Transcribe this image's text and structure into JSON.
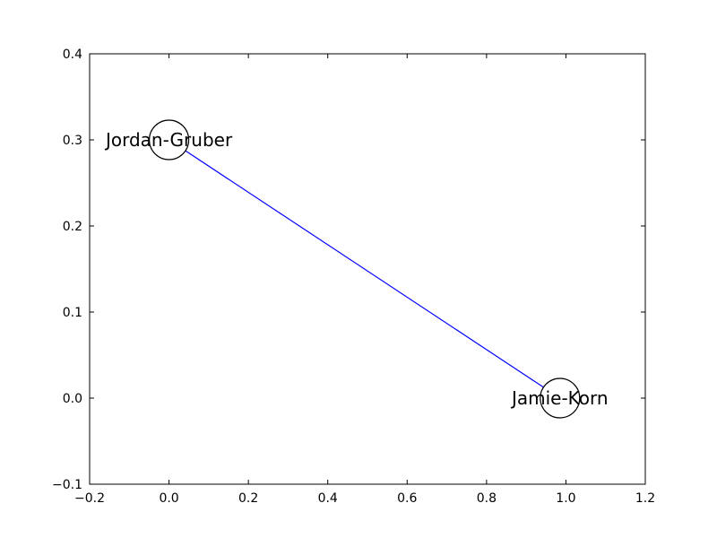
{
  "chart_data": {
    "type": "scatter",
    "title": "",
    "xlabel": "",
    "ylabel": "",
    "xlim": [
      -0.2,
      1.2
    ],
    "ylim": [
      -0.1,
      0.4
    ],
    "x_ticks": [
      -0.2,
      0.0,
      0.2,
      0.4,
      0.6,
      0.8,
      1.0,
      1.2
    ],
    "y_ticks": [
      -0.1,
      0.0,
      0.1,
      0.2,
      0.3,
      0.4
    ],
    "x_tick_labels": [
      "−0.2",
      "0.0",
      "0.2",
      "0.4",
      "0.6",
      "0.8",
      "1.0",
      "1.2"
    ],
    "y_tick_labels": [
      "−0.1",
      "0.0",
      "0.1",
      "0.2",
      "0.3",
      "0.4"
    ],
    "grid": false,
    "nodes": [
      {
        "label": "Jordan-Gruber",
        "x": 0.0,
        "y": 0.3
      },
      {
        "label": "Jamie-Korn",
        "x": 0.985,
        "y": 0.0
      }
    ],
    "edges": [
      {
        "source": "Jordan-Gruber",
        "target": "Jamie-Korn"
      }
    ],
    "colors": {
      "edge": "#0000ff",
      "node_outline": "#000000",
      "node_fill": "#ffffff",
      "axes": "#000000",
      "background": "#ffffff"
    }
  }
}
